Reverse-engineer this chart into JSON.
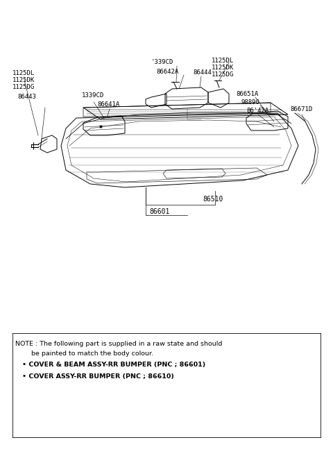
{
  "bg_color": "#ffffff",
  "fig_width": 4.8,
  "fig_height": 6.57,
  "dpi": 100,
  "note_line1": "NOTE : The following part is supplied in a raw state and should",
  "note_line2": "           be painted to match the body colour.",
  "note_line3": "  • COVER & BEAM ASSY-RR BUMPER (PNC ; 86601)",
  "note_line4": "  • COVER ASSY-RR BUMPER (PNC ; 86610)"
}
